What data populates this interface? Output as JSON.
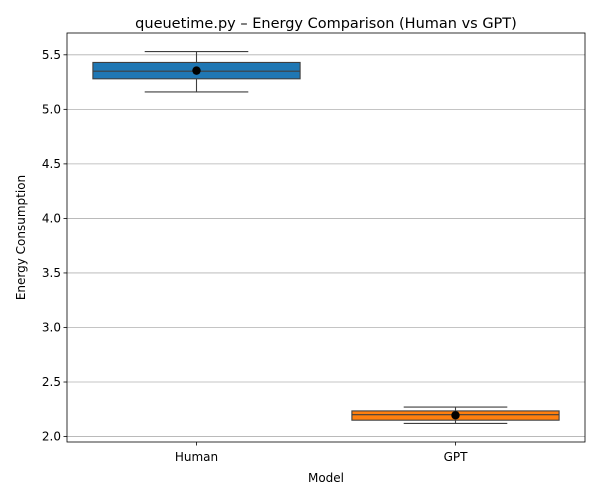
{
  "chart_data": {
    "type": "box",
    "title": "queuetime.py – Energy Comparison (Human vs GPT)",
    "xlabel": "Model",
    "ylabel": "Energy Consumption",
    "categories": [
      "Human",
      "GPT"
    ],
    "ylim": [
      1.95,
      5.7
    ],
    "yticks": [
      "2.0",
      "2.5",
      "3.0",
      "3.5",
      "4.0",
      "4.5",
      "5.0",
      "5.5"
    ],
    "grid": "horizontal",
    "boxes": [
      {
        "name": "Human",
        "whisker_low": 5.16,
        "q1": 5.28,
        "median": 5.35,
        "q3": 5.43,
        "whisker_high": 5.53,
        "mean": 5.355,
        "color": "#1f77b4"
      },
      {
        "name": "GPT",
        "whisker_low": 2.12,
        "q1": 2.15,
        "median": 2.2,
        "q3": 2.235,
        "whisker_high": 2.27,
        "mean": 2.195,
        "color": "#ff7f0e"
      }
    ]
  }
}
